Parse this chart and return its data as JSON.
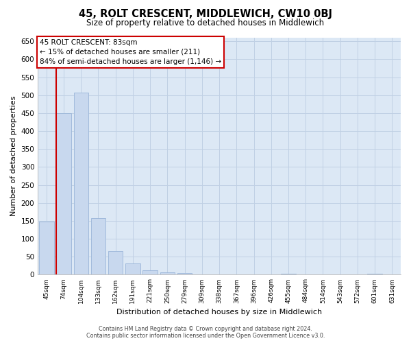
{
  "title": "45, ROLT CRESCENT, MIDDLEWICH, CW10 0BJ",
  "subtitle": "Size of property relative to detached houses in Middlewich",
  "xlabel": "Distribution of detached houses by size in Middlewich",
  "ylabel": "Number of detached properties",
  "bar_labels": [
    "45sqm",
    "74sqm",
    "104sqm",
    "133sqm",
    "162sqm",
    "191sqm",
    "221sqm",
    "250sqm",
    "279sqm",
    "309sqm",
    "338sqm",
    "367sqm",
    "396sqm",
    "426sqm",
    "455sqm",
    "484sqm",
    "514sqm",
    "543sqm",
    "572sqm",
    "601sqm",
    "631sqm"
  ],
  "bar_values": [
    148,
    450,
    507,
    158,
    65,
    32,
    12,
    7,
    5,
    0,
    0,
    0,
    0,
    0,
    2,
    0,
    0,
    0,
    0,
    2,
    0
  ],
  "bar_color": "#c8d8ee",
  "bar_edge_color": "#9ab5d8",
  "vline_color": "#cc0000",
  "ylim": [
    0,
    660
  ],
  "yticks": [
    0,
    50,
    100,
    150,
    200,
    250,
    300,
    350,
    400,
    450,
    500,
    550,
    600,
    650
  ],
  "annotation_title": "45 ROLT CRESCENT: 83sqm",
  "annotation_line1": "← 15% of detached houses are smaller (211)",
  "annotation_line2": "84% of semi-detached houses are larger (1,146) →",
  "annotation_box_color": "#ffffff",
  "annotation_box_edge": "#cc0000",
  "footer_line1": "Contains HM Land Registry data © Crown copyright and database right 2024.",
  "footer_line2": "Contains public sector information licensed under the Open Government Licence v3.0.",
  "background_color": "#ffffff",
  "grid_color": "#c0d0e4",
  "plot_bg_color": "#dce8f5"
}
